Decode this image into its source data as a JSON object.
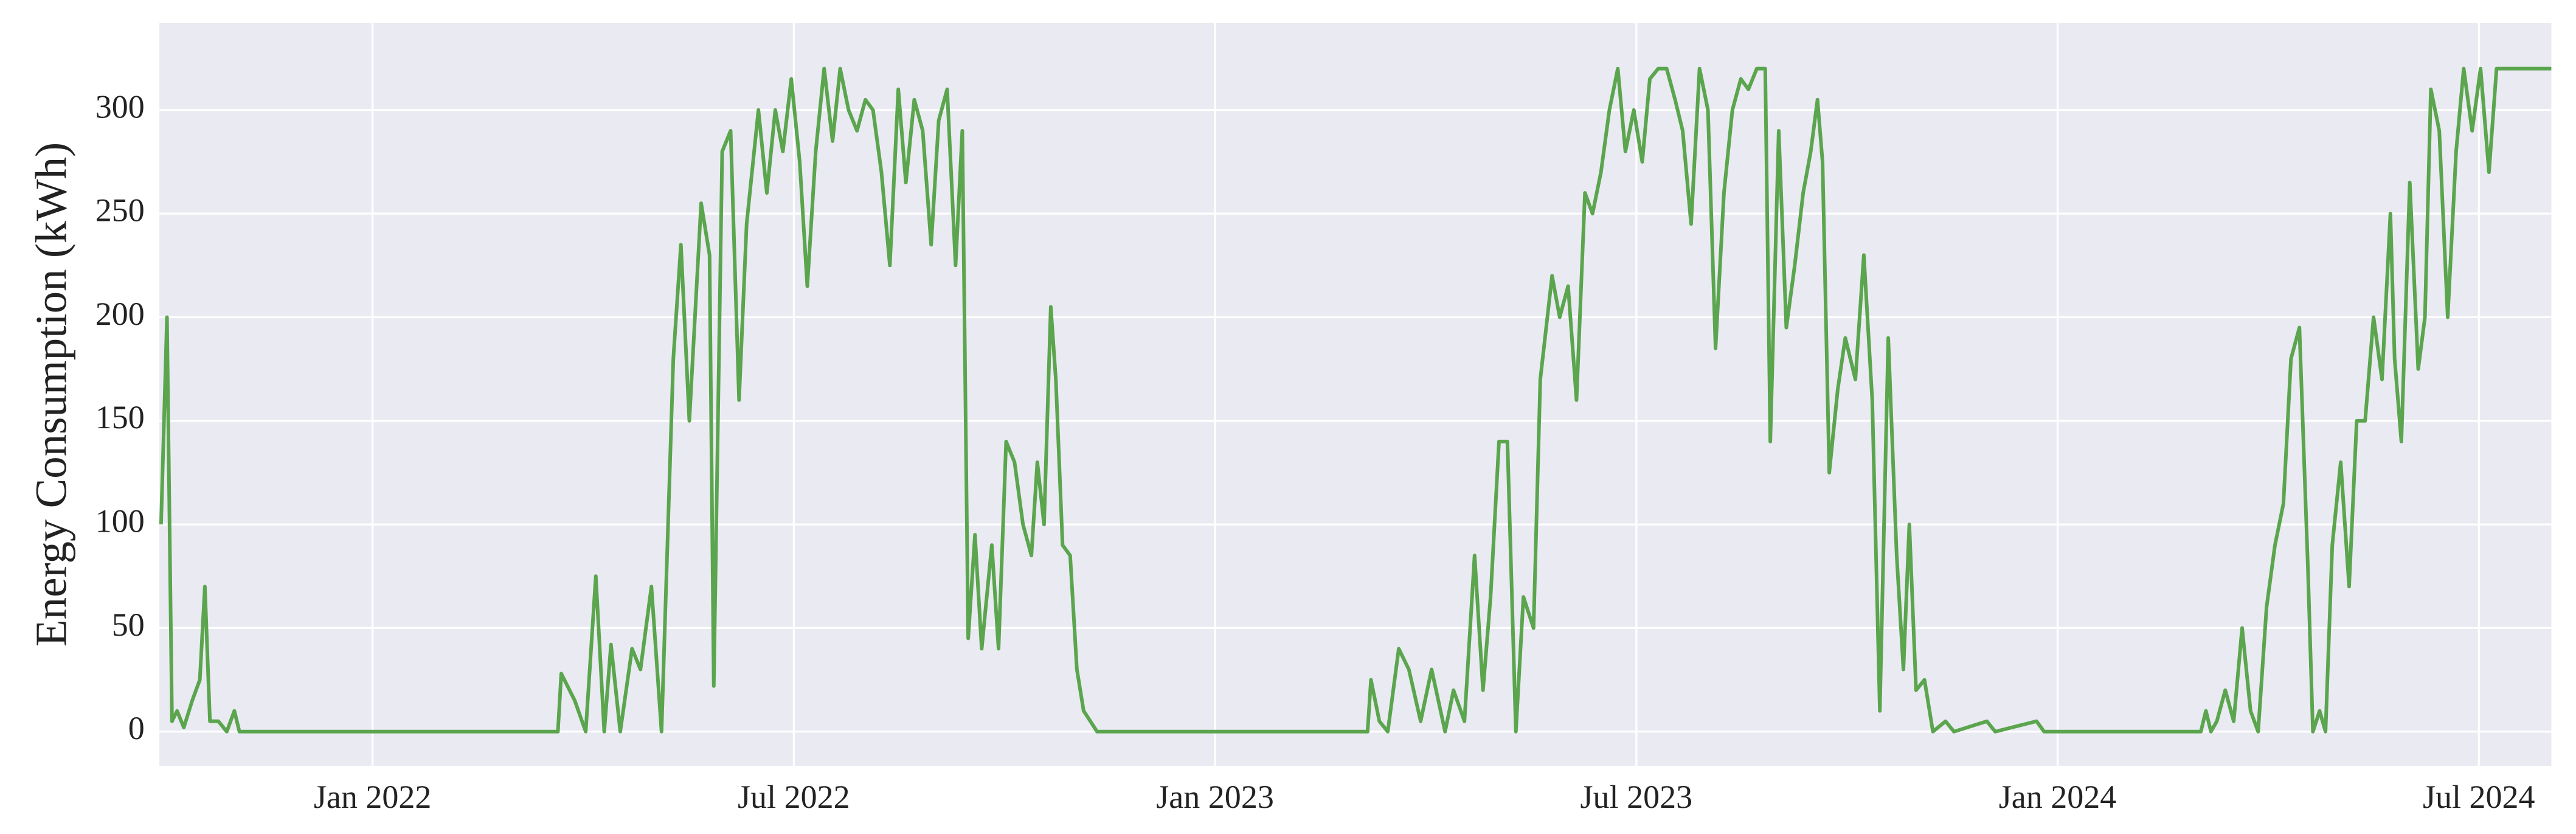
{
  "chart_data": {
    "type": "line",
    "y_label": "Energy Consumption (kWh)",
    "x": [
      2021.749,
      2021.756,
      2021.762,
      2021.768,
      2021.776,
      2021.786,
      2021.795,
      2021.801,
      2021.807,
      2021.817,
      2021.827,
      2021.836,
      2021.842,
      2022.22,
      2022.224,
      2022.24,
      2022.253,
      2022.265,
      2022.275,
      2022.283,
      2022.294,
      2022.308,
      2022.318,
      2022.331,
      2022.343,
      2022.357,
      2022.366,
      2022.376,
      2022.39,
      2022.4,
      2022.405,
      2022.415,
      2022.425,
      2022.435,
      2022.444,
      2022.458,
      2022.468,
      2022.478,
      2022.487,
      2022.497,
      2022.507,
      2022.516,
      2022.526,
      2022.536,
      2022.546,
      2022.555,
      2022.565,
      2022.575,
      2022.585,
      2022.594,
      2022.604,
      2022.614,
      2022.624,
      2022.633,
      2022.643,
      2022.653,
      2022.663,
      2022.672,
      2022.682,
      2022.692,
      2022.7,
      2022.707,
      2022.715,
      2022.723,
      2022.735,
      2022.743,
      2022.752,
      2022.762,
      2022.772,
      2022.782,
      2022.789,
      2022.797,
      2022.805,
      2022.811,
      2022.819,
      2022.828,
      2022.836,
      2022.844,
      2022.852,
      2022.86,
      2023.181,
      2023.185,
      2023.195,
      2023.205,
      2023.218,
      2023.23,
      2023.244,
      2023.257,
      2023.273,
      2023.283,
      2023.296,
      2023.308,
      2023.318,
      2023.327,
      2023.337,
      2023.347,
      2023.357,
      2023.366,
      2023.378,
      2023.386,
      2023.4,
      2023.409,
      2023.419,
      2023.429,
      2023.439,
      2023.448,
      2023.458,
      2023.468,
      2023.478,
      2023.487,
      2023.497,
      2023.507,
      2023.516,
      2023.526,
      2023.536,
      2023.546,
      2023.555,
      2023.565,
      2023.575,
      2023.585,
      2023.594,
      2023.604,
      2023.614,
      2023.624,
      2023.633,
      2023.643,
      2023.653,
      2023.659,
      2023.669,
      2023.678,
      2023.688,
      2023.698,
      2023.707,
      2023.715,
      2023.721,
      2023.729,
      2023.739,
      2023.748,
      2023.76,
      2023.77,
      2023.78,
      2023.789,
      2023.799,
      2023.809,
      2023.817,
      2023.824,
      2023.832,
      2023.842,
      2023.852,
      2023.867,
      2023.877,
      2023.916,
      2023.926,
      2023.975,
      2023.984,
      2024.17,
      2024.176,
      2024.182,
      2024.189,
      2024.199,
      2024.209,
      2024.219,
      2024.229,
      2024.238,
      2024.248,
      2024.258,
      2024.268,
      2024.277,
      2024.287,
      2024.297,
      2024.303,
      2024.311,
      2024.318,
      2024.326,
      2024.336,
      2024.346,
      2024.355,
      2024.365,
      2024.375,
      2024.385,
      2024.395,
      2024.4,
      2024.408,
      2024.418,
      2024.428,
      2024.436,
      2024.443,
      2024.453,
      2024.463,
      2024.473,
      2024.482,
      2024.492,
      2024.502,
      2024.512,
      2024.521,
      2024.531,
      2024.586
    ],
    "values": [
      100,
      200,
      5,
      10,
      2,
      15,
      25,
      70,
      5,
      5,
      0,
      10,
      0,
      0,
      28,
      15,
      0,
      75,
      0,
      42,
      0,
      40,
      30,
      70,
      0,
      180,
      235,
      150,
      255,
      230,
      22,
      280,
      290,
      160,
      245,
      300,
      260,
      300,
      280,
      315,
      275,
      215,
      280,
      320,
      285,
      320,
      300,
      290,
      305,
      300,
      270,
      225,
      310,
      265,
      305,
      290,
      235,
      295,
      310,
      225,
      290,
      45,
      95,
      40,
      90,
      40,
      140,
      130,
      100,
      85,
      130,
      100,
      205,
      170,
      90,
      85,
      30,
      10,
      5,
      0,
      0,
      25,
      5,
      0,
      40,
      30,
      5,
      30,
      0,
      20,
      5,
      85,
      20,
      65,
      140,
      140,
      0,
      65,
      50,
      170,
      220,
      200,
      215,
      160,
      260,
      250,
      270,
      300,
      320,
      280,
      300,
      275,
      315,
      320,
      320,
      305,
      290,
      245,
      320,
      300,
      185,
      260,
      300,
      315,
      310,
      320,
      320,
      140,
      290,
      195,
      225,
      260,
      280,
      305,
      275,
      125,
      165,
      190,
      170,
      230,
      160,
      10,
      190,
      85,
      30,
      100,
      20,
      25,
      0,
      5,
      0,
      5,
      0,
      5,
      0,
      0,
      10,
      0,
      5,
      20,
      5,
      50,
      10,
      0,
      60,
      90,
      110,
      180,
      195,
      80,
      0,
      10,
      0,
      90,
      130,
      70,
      150,
      150,
      200,
      170,
      250,
      180,
      140,
      265,
      175,
      200,
      310,
      290,
      200,
      280,
      320,
      290,
      320,
      270,
      320,
      320,
      320
    ],
    "color": "#5aa54d",
    "xlim": [
      2021.747,
      2024.586
    ],
    "xticks": [
      {
        "value": 2022,
        "label": "Jan 2022"
      },
      {
        "value": 2022.5,
        "label": "Jul 2022"
      },
      {
        "value": 2023,
        "label": "Jan 2023"
      },
      {
        "value": 2023.5,
        "label": "Jul 2023"
      },
      {
        "value": 2024,
        "label": "Jan 2024"
      },
      {
        "value": 2024.5,
        "label": "Jul 2024"
      }
    ],
    "ylim": [
      -16.5,
      342
    ],
    "yticks": [
      0,
      50,
      100,
      150,
      200,
      250,
      300
    ],
    "grid": true
  }
}
